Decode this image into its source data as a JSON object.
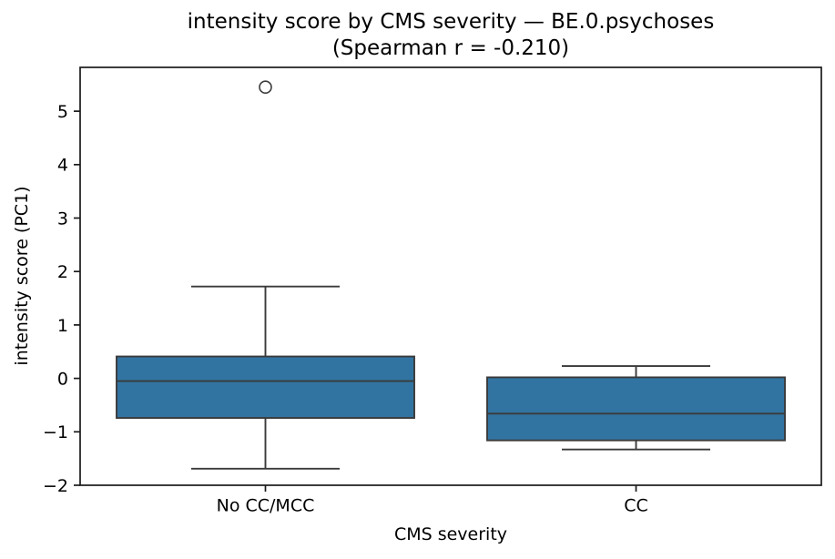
{
  "chart_data": {
    "type": "box",
    "title_line1": "intensity score by CMS severity — BE.0.psychoses",
    "title_line2": "(Spearman r = -0.210)",
    "spearman_r": -0.21,
    "xlabel": "CMS severity",
    "ylabel": "intensity score (PC1)",
    "categories": [
      "No CC/MCC",
      "CC"
    ],
    "ylim": [
      -2.0,
      5.82
    ],
    "yticks": [
      5,
      4,
      3,
      2,
      1,
      0,
      -1,
      -2
    ],
    "grid": false,
    "legend": null,
    "boxes": [
      {
        "category": "No CC/MCC",
        "whisker_low": -1.69,
        "q1": -0.74,
        "median": -0.05,
        "q3": 0.41,
        "whisker_high": 1.72,
        "outliers": [
          5.45
        ]
      },
      {
        "category": "CC",
        "whisker_low": -1.33,
        "q1": -1.16,
        "median": -0.66,
        "q3": 0.02,
        "whisker_high": 0.23,
        "outliers": []
      }
    ],
    "colors": {
      "box_fill": "#3274a1",
      "box_edge": "#3a3a3a",
      "spine": "#1a1a1a",
      "text": "#000000",
      "background": "#ffffff"
    }
  }
}
